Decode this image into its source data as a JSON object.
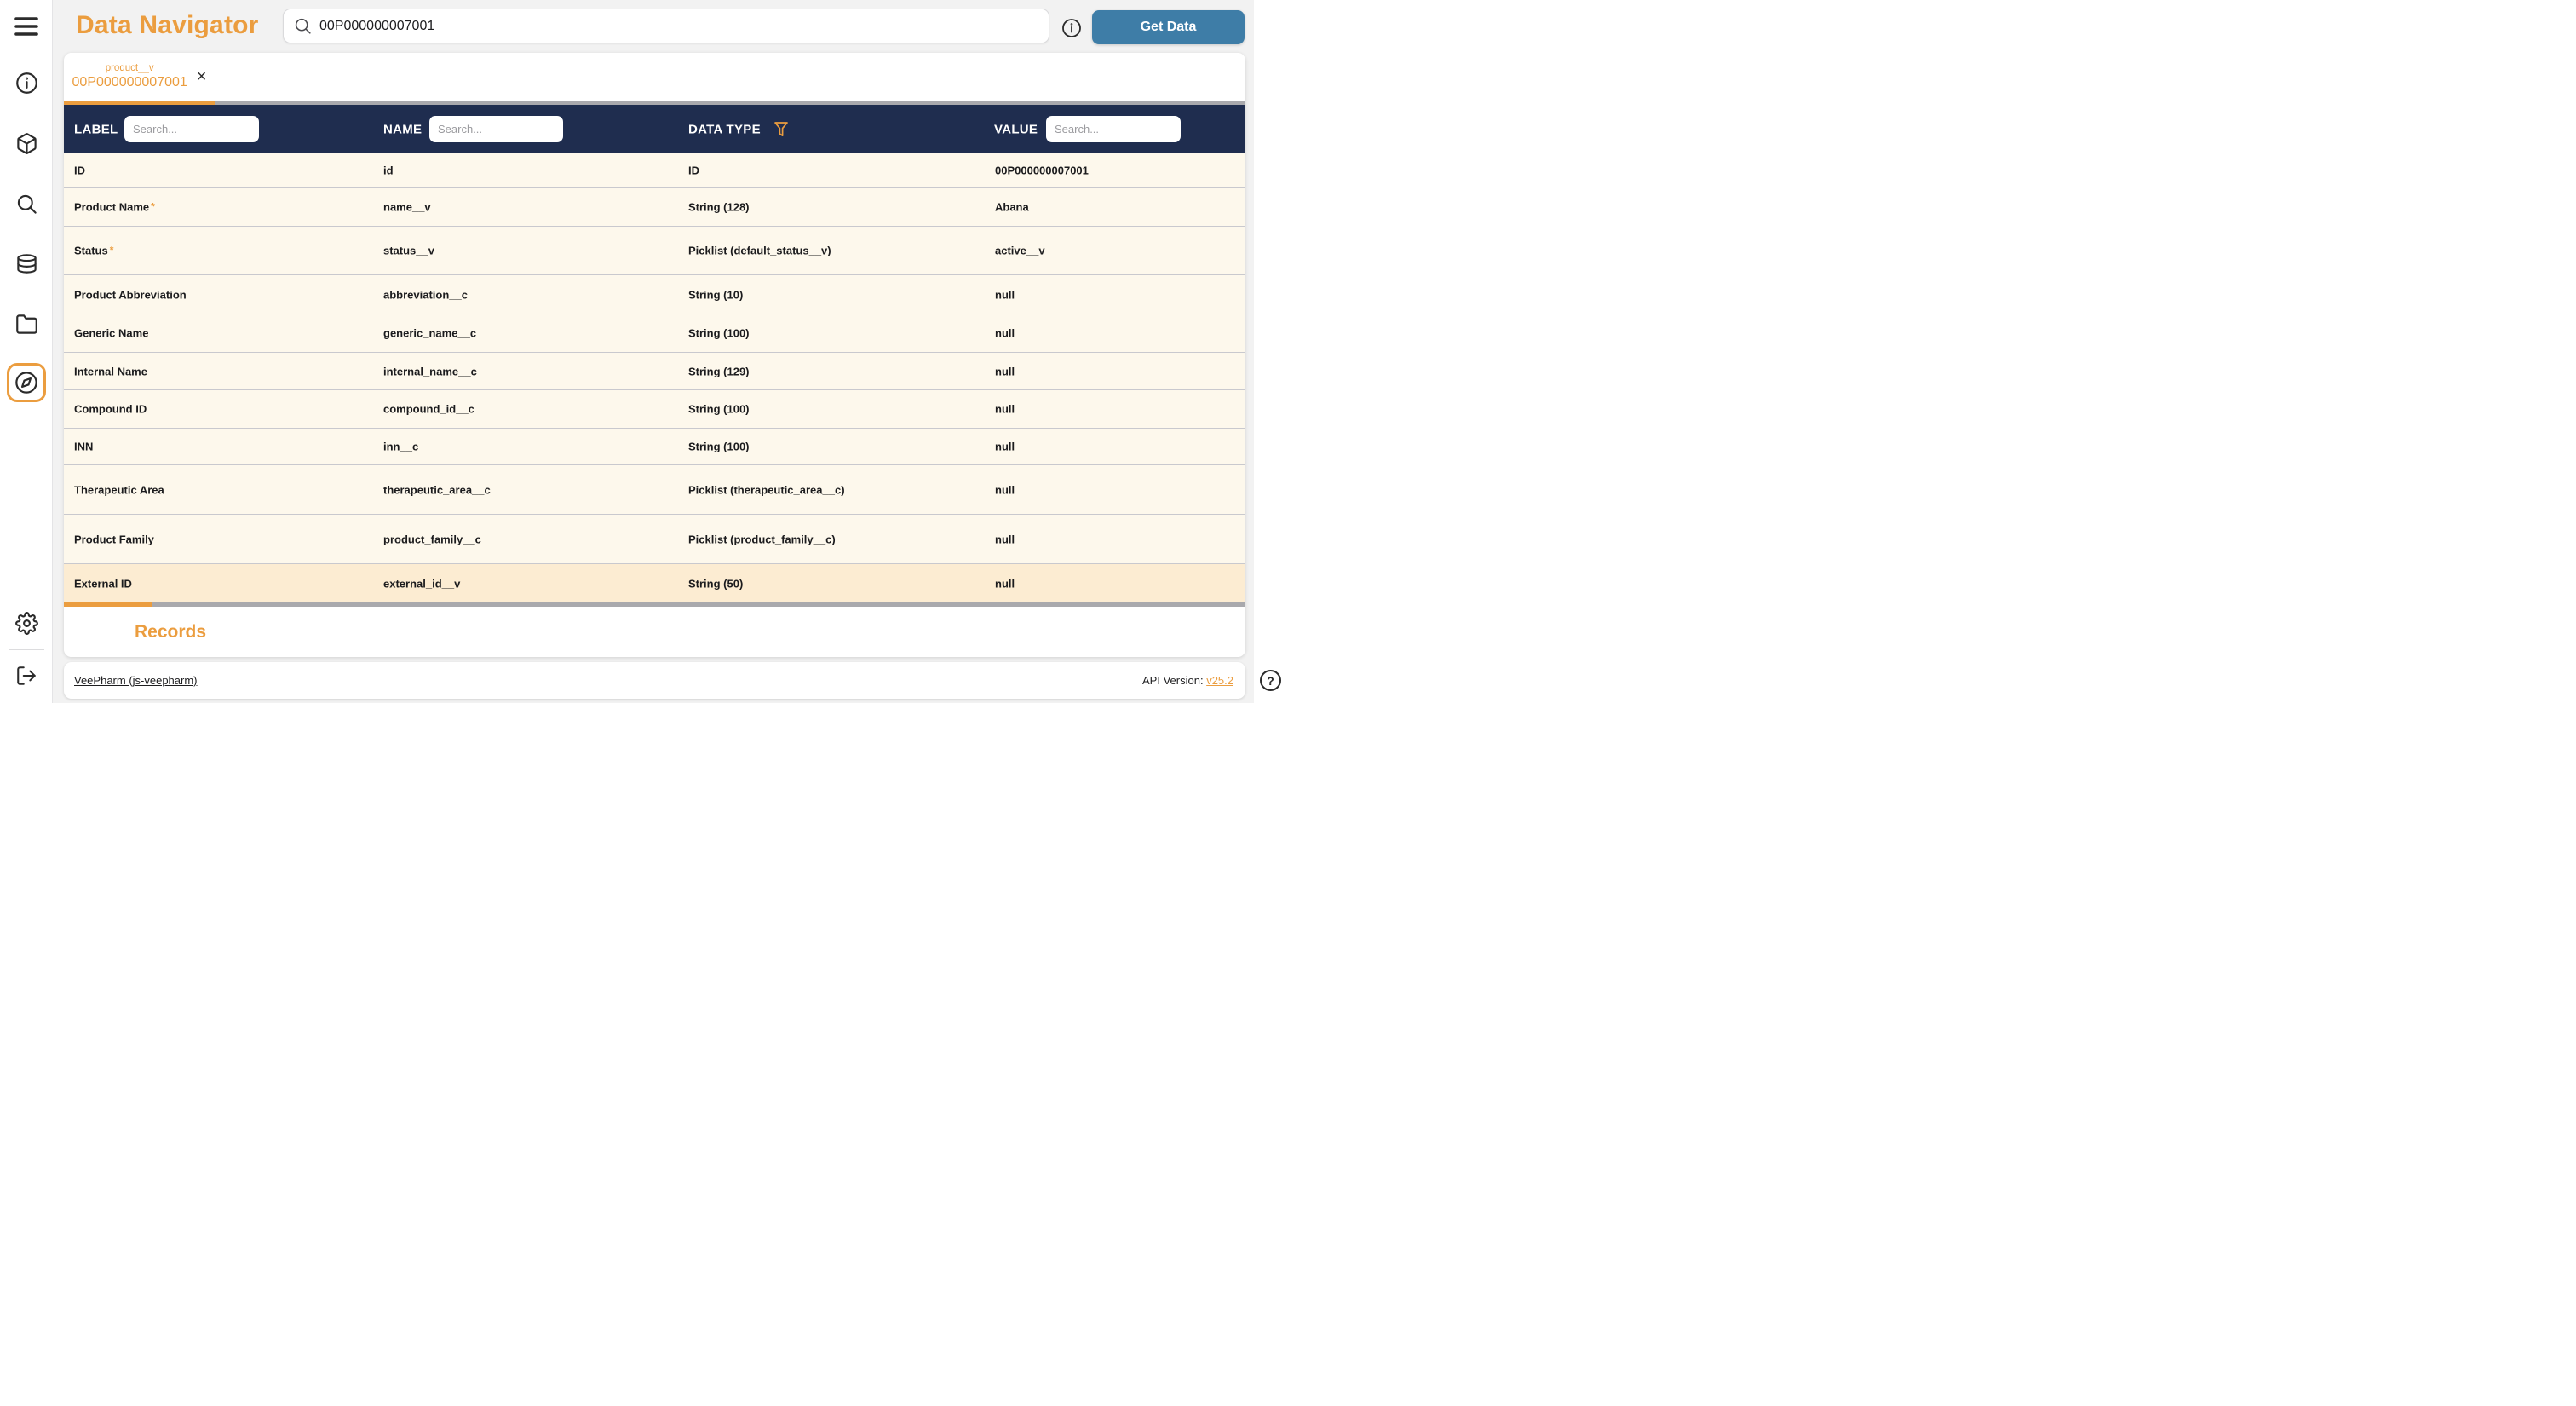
{
  "app": {
    "title": "Data Navigator"
  },
  "topbar": {
    "search_value": "00P000000007001",
    "get_data_label": "Get Data"
  },
  "sidebar": {
    "items": [
      {
        "name": "menu"
      },
      {
        "name": "info"
      },
      {
        "name": "package"
      },
      {
        "name": "search"
      },
      {
        "name": "database"
      },
      {
        "name": "folder"
      },
      {
        "name": "compass-active"
      },
      {
        "name": "settings"
      },
      {
        "name": "logout"
      }
    ]
  },
  "tab": {
    "object_name": "product__v",
    "record_id": "00P000000007001",
    "close_glyph": "×"
  },
  "table": {
    "columns": {
      "label": "LABEL",
      "name": "NAME",
      "data_type": "DATA TYPE",
      "value": "VALUE",
      "label_search_placeholder": "Search...",
      "name_search_placeholder": "Search...",
      "value_search_placeholder": "Search..."
    },
    "rows": [
      {
        "label": "ID",
        "required": false,
        "name": "id",
        "type": "ID",
        "value": "00P000000007001",
        "highlight": false
      },
      {
        "label": "Product Name",
        "required": true,
        "name": "name__v",
        "type": "String (128)",
        "value": "Abana",
        "highlight": false
      },
      {
        "label": "Status",
        "required": true,
        "name": "status__v",
        "type": "Picklist (default_status__v)",
        "value": "active__v",
        "highlight": false
      },
      {
        "label": "Product Abbreviation",
        "required": false,
        "name": "abbreviation__c",
        "type": "String (10)",
        "value": "null",
        "highlight": false
      },
      {
        "label": "Generic Name",
        "required": false,
        "name": "generic_name__c",
        "type": "String (100)",
        "value": "null",
        "highlight": false
      },
      {
        "label": "Internal Name",
        "required": false,
        "name": "internal_name__c",
        "type": "String (129)",
        "value": "null",
        "highlight": false
      },
      {
        "label": "Compound ID",
        "required": false,
        "name": "compound_id__c",
        "type": "String (100)",
        "value": "null",
        "highlight": false
      },
      {
        "label": "INN",
        "required": false,
        "name": "inn__c",
        "type": "String (100)",
        "value": "null",
        "highlight": false
      },
      {
        "label": "Therapeutic Area",
        "required": false,
        "name": "therapeutic_area__c",
        "type": "Picklist (therapeutic_area__c)",
        "value": "null",
        "highlight": false
      },
      {
        "label": "Product Family",
        "required": false,
        "name": "product_family__c",
        "type": "Picklist (product_family__c)",
        "value": "null",
        "highlight": false
      },
      {
        "label": "External ID",
        "required": false,
        "name": "external_id__v",
        "type": "String (50)",
        "value": "null",
        "highlight": true
      }
    ]
  },
  "records_section": {
    "title": "Records"
  },
  "footer": {
    "environment_link": "VeePharm (js-veepharm)",
    "api_version_label": "API Version:",
    "api_version_value": "v25.2",
    "help_glyph": "?"
  },
  "colors": {
    "accent_orange": "#eb9d3f",
    "header_navy": "#1f2d4f",
    "button_blue": "#3e7da7",
    "row_cream": "#fdf8ec",
    "row_highlight": "#fcecd2"
  }
}
